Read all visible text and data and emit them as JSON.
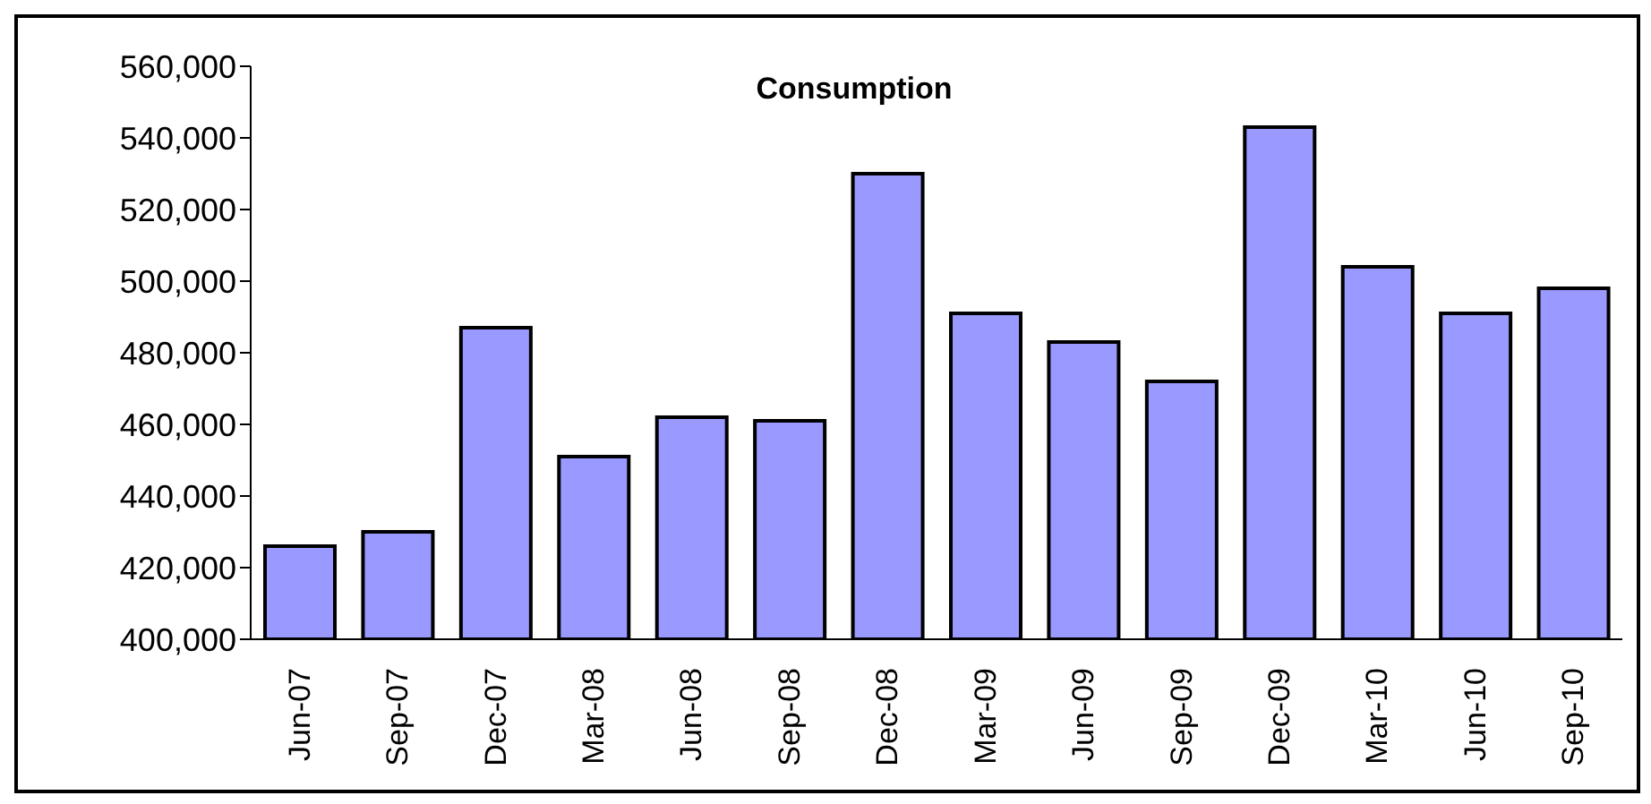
{
  "chart_data": {
    "type": "bar",
    "title": "Consumption",
    "categories": [
      "Jun-07",
      "Sep-07",
      "Dec-07",
      "Mar-08",
      "Jun-08",
      "Sep-08",
      "Dec-08",
      "Mar-09",
      "Jun-09",
      "Sep-09",
      "Dec-09",
      "Mar-10",
      "Jun-10",
      "Sep-10"
    ],
    "values": [
      426000,
      430000,
      487000,
      451000,
      462000,
      461000,
      530000,
      491000,
      483000,
      472000,
      543000,
      504000,
      491000,
      498000
    ],
    "color": "#9999ff",
    "ylim": [
      400000,
      560000
    ],
    "yticks": [
      {
        "value": 400000,
        "label": "400,000"
      },
      {
        "value": 420000,
        "label": "420,000"
      },
      {
        "value": 440000,
        "label": "440,000"
      },
      {
        "value": 460000,
        "label": "460,000"
      },
      {
        "value": 480000,
        "label": "480,000"
      },
      {
        "value": 500000,
        "label": "500,000"
      },
      {
        "value": 520000,
        "label": "520,000"
      },
      {
        "value": 540000,
        "label": "540,000"
      },
      {
        "value": 560000,
        "label": "560,000"
      }
    ],
    "grid": false
  }
}
